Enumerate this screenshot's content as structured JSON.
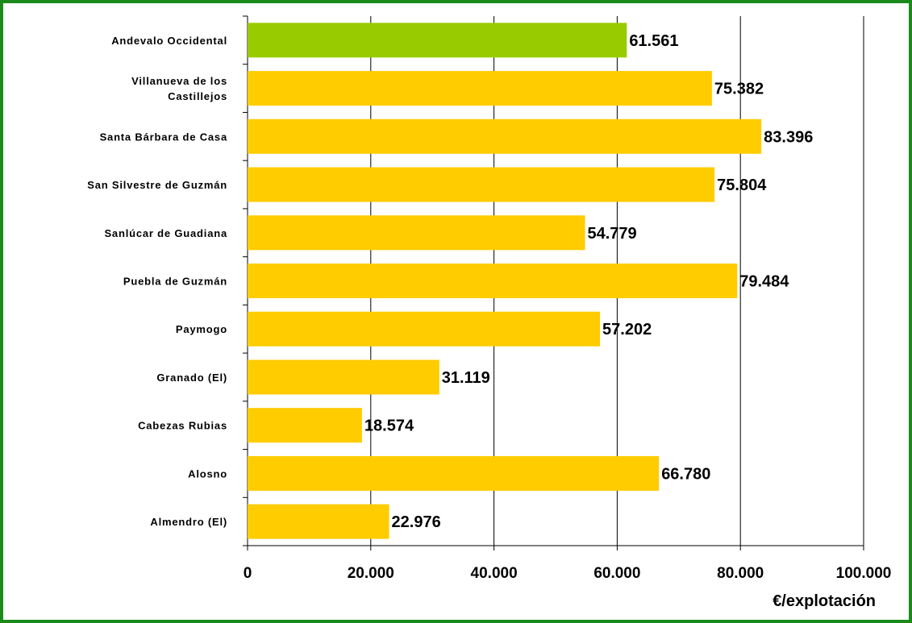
{
  "chart_data": {
    "type": "bar",
    "orientation": "horizontal",
    "categories": [
      "Andevalo Occidental",
      "Villanueva de los Castillejos",
      "Santa Bárbara de Casa",
      "San Silvestre de Guzmán",
      "Sanlúcar de Guadiana",
      "Puebla de Guzmán",
      "Paymogo",
      "Granado (El)",
      "Cabezas Rubias",
      "Alosno",
      "Almendro (El)"
    ],
    "category_lines": [
      [
        "Andevalo Occidental"
      ],
      [
        "Villanueva de los",
        "Castillejos"
      ],
      [
        "Santa Bárbara de Casa"
      ],
      [
        "San Silvestre de Guzmán"
      ],
      [
        "Sanlúcar de Guadiana"
      ],
      [
        "Puebla de Guzmán"
      ],
      [
        "Paymogo"
      ],
      [
        "Granado (El)"
      ],
      [
        "Cabezas Rubias"
      ],
      [
        "Alosno"
      ],
      [
        "Almendro (El)"
      ]
    ],
    "values": [
      61561,
      75382,
      83396,
      75804,
      54779,
      79484,
      57202,
      31119,
      18574,
      66780,
      22976
    ],
    "value_labels": [
      "61.561",
      "75.382",
      "83.396",
      "75.804",
      "54.779",
      "79.484",
      "57.202",
      "31.119",
      "18.574",
      "66.780",
      "22.976"
    ],
    "bar_colors": [
      "#99cc00",
      "#ffcc00",
      "#ffcc00",
      "#ffcc00",
      "#ffcc00",
      "#ffcc00",
      "#ffcc00",
      "#ffcc00",
      "#ffcc00",
      "#ffcc00",
      "#ffcc00"
    ],
    "xlim": [
      0,
      100000
    ],
    "xticks": [
      0,
      20000,
      40000,
      60000,
      80000,
      100000
    ],
    "xtick_labels": [
      "0",
      "20.000",
      "40.000",
      "60.000",
      "80.000",
      "100.000"
    ],
    "xlabel": "€/explotación",
    "grid": "vertical",
    "legend": "none"
  },
  "colors": {
    "frame_border": "#1a8a1a",
    "highlight_bar": "#99cc00",
    "bar": "#ffcc00",
    "gridline": "#000000"
  }
}
